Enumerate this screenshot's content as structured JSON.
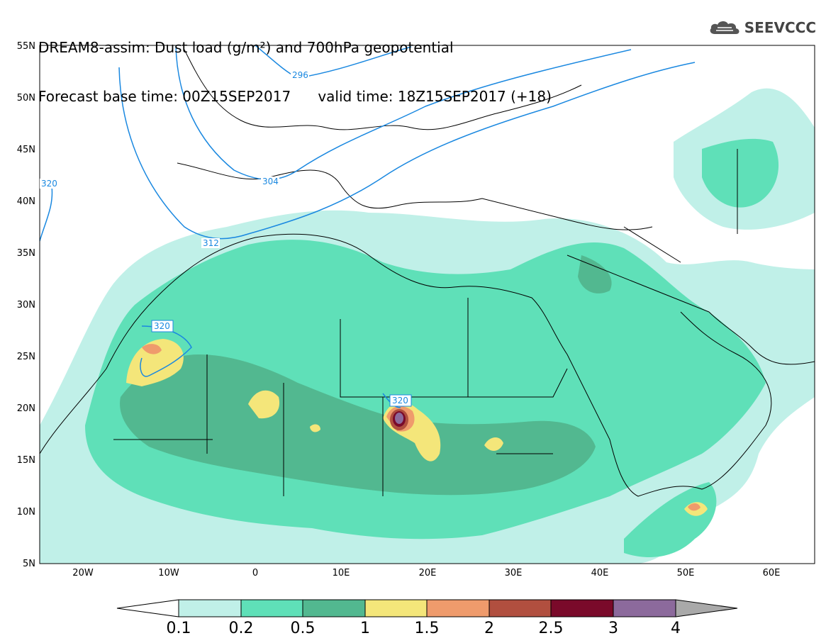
{
  "title": {
    "line1": "DREAM8-assim: Dust load (g/m²) and 700hPa geopotential",
    "line2": "Forecast base time: 00Z15SEP2017      valid time: 18Z15SEP2017 (+18)"
  },
  "logo": {
    "text": "SEEVCCC",
    "icon": "cloud-icon"
  },
  "map": {
    "lon_range": [
      -25,
      65
    ],
    "lat_range": [
      5,
      55
    ],
    "lat_ticks": [
      "55N",
      "50N",
      "45N",
      "40N",
      "35N",
      "30N",
      "25N",
      "20N",
      "15N",
      "10N",
      "5N"
    ],
    "lon_ticks": [
      "20W",
      "10W",
      "0",
      "10E",
      "20E",
      "30E",
      "40E",
      "50E",
      "60E"
    ],
    "geopotential_labels": [
      "296",
      "304",
      "312",
      "320",
      "320",
      "320"
    ]
  },
  "colorbar": {
    "labels": [
      "0.1",
      "0.2",
      "0.5",
      "1",
      "1.5",
      "2",
      "2.5",
      "3",
      "4"
    ],
    "colors": [
      "#ffffff",
      "#c0f0e8",
      "#5fe0b8",
      "#52b890",
      "#f4e67a",
      "#ef9b6c",
      "#b14f3f",
      "#7a0a2a",
      "#8c6a9c",
      "#a9a9a9"
    ]
  },
  "colors": {
    "contour": "#1a88e0",
    "coast": "#000000",
    "dust_01": "#c0f0e8",
    "dust_02": "#5fe0b8",
    "dust_05": "#52b890",
    "dust_1": "#f4e67a",
    "dust_15": "#ef9b6c",
    "dust_2": "#b14f3f",
    "dust_25": "#7a0a2a",
    "dust_3": "#8c6a9c"
  }
}
